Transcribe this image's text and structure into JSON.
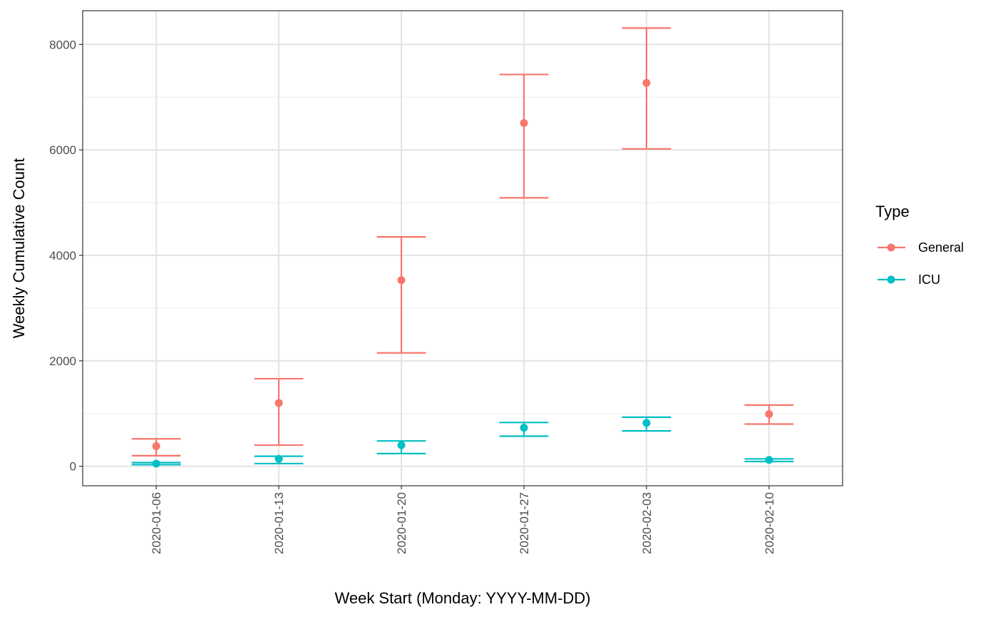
{
  "chart_data": {
    "type": "scatter",
    "title": "",
    "xlabel": "Week Start (Monday: YYYY-MM-DD)",
    "ylabel": "Weekly Cumulative Count",
    "categories": [
      "2020-01-06",
      "2020-01-13",
      "2020-01-20",
      "2020-01-27",
      "2020-02-03",
      "2020-02-10"
    ],
    "ylim": [
      -370,
      8640
    ],
    "yticks": [
      0,
      2000,
      4000,
      6000,
      8000
    ],
    "grid": true,
    "error_bars": true,
    "legend": {
      "title": "Type",
      "position": "right"
    },
    "series": [
      {
        "name": "General",
        "color": "#F8766D",
        "values": [
          380,
          1200,
          3530,
          6510,
          7270,
          990
        ],
        "lower": [
          200,
          400,
          2150,
          5090,
          6020,
          800
        ],
        "upper": [
          520,
          1660,
          4350,
          7430,
          8310,
          1160
        ]
      },
      {
        "name": "ICU",
        "color": "#00BFC4",
        "values": [
          50,
          140,
          400,
          730,
          820,
          120
        ],
        "lower": [
          30,
          50,
          240,
          570,
          670,
          90
        ],
        "upper": [
          70,
          190,
          480,
          830,
          930,
          140
        ]
      }
    ]
  }
}
